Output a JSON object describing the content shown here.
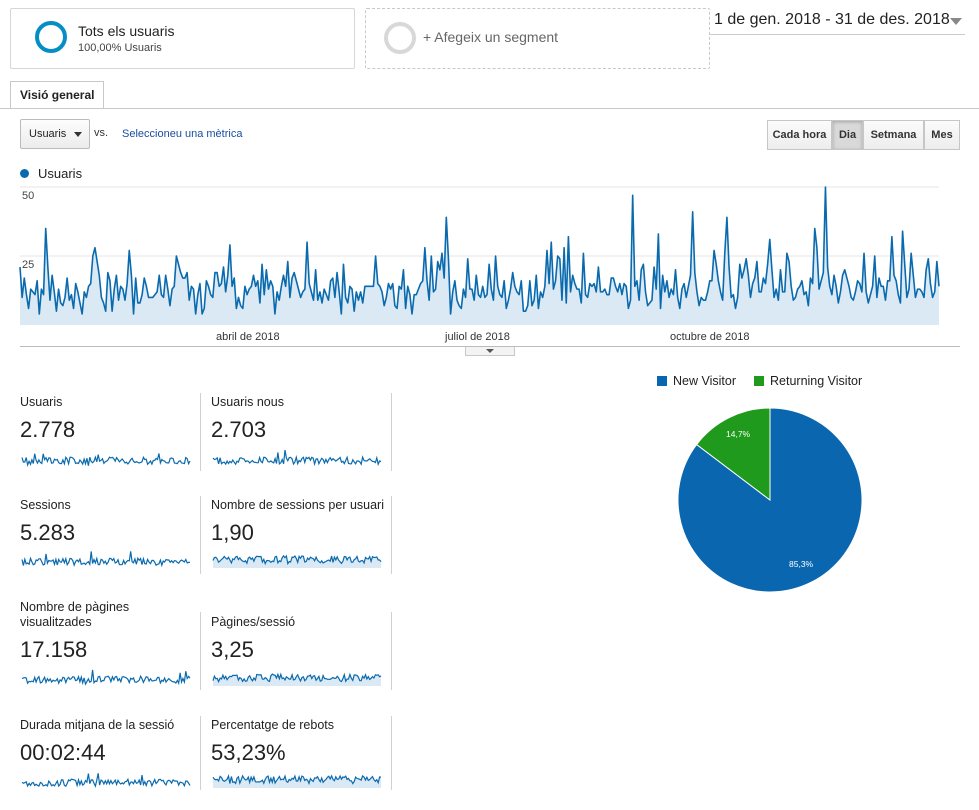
{
  "segments": {
    "active": {
      "title": "Tots els usuaris",
      "subtitle": "100,00% Usuaris"
    },
    "add_label": "+ Afegeix un segment"
  },
  "date_range": "1 de gen. 2018 - 31 de des. 2018",
  "tab": "Visió general",
  "controls": {
    "metric": "Usuaris",
    "vs": "vs.",
    "select_metric": "Seleccioneu una mètrica",
    "granularity": [
      "Cada hora",
      "Dia",
      "Setmana",
      "Mes"
    ],
    "selected_granularity": "Dia"
  },
  "colors": {
    "accent": "#058dc7",
    "line": "#0a6aae",
    "fill": "#dbe9f5",
    "new": "#0a66ae",
    "returning": "#1f9a1c"
  },
  "chart_data": [
    {
      "type": "area",
      "series": [
        {
          "name": "Usuaris",
          "values": [
            21,
            10,
            17,
            11,
            6,
            13,
            12,
            11,
            16,
            4,
            13,
            11,
            35,
            21,
            9,
            18,
            12,
            5,
            13,
            8,
            7,
            10,
            17,
            9,
            11,
            6,
            15,
            12,
            8,
            4,
            12,
            10,
            14,
            15,
            25,
            28,
            23,
            18,
            10,
            8,
            5,
            19,
            16,
            5,
            13,
            18,
            9,
            14,
            13,
            9,
            15,
            27,
            18,
            4,
            17,
            8,
            8,
            11,
            17,
            14,
            10,
            10,
            10,
            11,
            12,
            18,
            11,
            10,
            18,
            13,
            7,
            13,
            14,
            25,
            22,
            19,
            17,
            17,
            19,
            9,
            14,
            13,
            4,
            11,
            15,
            4,
            6,
            16,
            14,
            11,
            10,
            19,
            19,
            14,
            15,
            21,
            12,
            18,
            29,
            14,
            17,
            6,
            10,
            7,
            6,
            14,
            11,
            13,
            14,
            18,
            14,
            16,
            8,
            22,
            11,
            20,
            13,
            16,
            14,
            4,
            12,
            9,
            14,
            18,
            14,
            23,
            10,
            17,
            19,
            16,
            13,
            10,
            12,
            13,
            30,
            15,
            12,
            9,
            20,
            9,
            12,
            8,
            13,
            11,
            9,
            16,
            17,
            10,
            19,
            12,
            4,
            22,
            10,
            8,
            14,
            13,
            5,
            12,
            9,
            12,
            8,
            14,
            14,
            14,
            14,
            14,
            25,
            15,
            14,
            12,
            7,
            10,
            15,
            13,
            15,
            7,
            6,
            14,
            13,
            20,
            6,
            14,
            11,
            4,
            11,
            11,
            13,
            15,
            16,
            28,
            16,
            9,
            25,
            12,
            13,
            23,
            20,
            26,
            17,
            39,
            24,
            4,
            12,
            16,
            9,
            7,
            6,
            13,
            10,
            24,
            13,
            13,
            9,
            18,
            11,
            10,
            14,
            10,
            11,
            22,
            13,
            9,
            25,
            14,
            11,
            10,
            16,
            6,
            9,
            13,
            19,
            14,
            12,
            11,
            16,
            5,
            5,
            7,
            16,
            7,
            9,
            18,
            6,
            12,
            10,
            14,
            27,
            15,
            30,
            13,
            16,
            25,
            24,
            9,
            28,
            8,
            32,
            12,
            18,
            15,
            13,
            13,
            8,
            26,
            11,
            10,
            15,
            14,
            15,
            12,
            21,
            12,
            12,
            13,
            11,
            11,
            17,
            17,
            14,
            12,
            15,
            11,
            15,
            14,
            6,
            9,
            47,
            14,
            16,
            9,
            20,
            22,
            12,
            7,
            8,
            9,
            21,
            13,
            33,
            6,
            18,
            12,
            16,
            10,
            13,
            11,
            20,
            10,
            6,
            13,
            15,
            10,
            14,
            18,
            41,
            19,
            12,
            7,
            10,
            9,
            9,
            12,
            16,
            16,
            27,
            22,
            16,
            12,
            9,
            26,
            39,
            21,
            10,
            11,
            6,
            10,
            22,
            17,
            20,
            24,
            18,
            10,
            15,
            17,
            23,
            12,
            12,
            17,
            15,
            22,
            31,
            20,
            10,
            13,
            9,
            20,
            12,
            12,
            26,
            23,
            14,
            9,
            10,
            13,
            14,
            16,
            11,
            12,
            7,
            17,
            15,
            35,
            28,
            13,
            16,
            19,
            50,
            21,
            14,
            11,
            18,
            14,
            8,
            12,
            18,
            20,
            17,
            14,
            10,
            9,
            12,
            16,
            15,
            12,
            26,
            12,
            8,
            11,
            14,
            25,
            10,
            17,
            14,
            14,
            9,
            16,
            16,
            32,
            18,
            16,
            11,
            8,
            34,
            22,
            10,
            13,
            26,
            18,
            10,
            13,
            13,
            12,
            10,
            20,
            24,
            15,
            10,
            12,
            23,
            14
          ]
        }
      ],
      "x_ticks": [
        "abril de 2018",
        "juliol de 2018",
        "octubre de 2018"
      ],
      "y_ticks": [
        "25",
        "50"
      ],
      "ylim": [
        0,
        50
      ],
      "xlim": [
        "2018-01-01",
        "2018-12-31"
      ],
      "grid": true
    },
    {
      "type": "pie",
      "labels": [
        "New Visitor",
        "Returning Visitor"
      ],
      "values": [
        85.3,
        14.7
      ],
      "value_labels": [
        "85,3%",
        "14,7%"
      ],
      "legend": "top"
    }
  ],
  "scorecards": [
    {
      "label": "Usuaris",
      "value": "2.778"
    },
    {
      "label": "Usuaris nous",
      "value": "2.703"
    },
    {
      "label": "Sessions",
      "value": "5.283"
    },
    {
      "label": "Nombre de sessions per usuari",
      "value": "1,90"
    },
    {
      "label": "Nombre de pàgines visualitzades",
      "value": "17.158"
    },
    {
      "label": "Pàgines/sessió",
      "value": "3,25"
    },
    {
      "label": "Durada mitjana de la sessió",
      "value": "00:02:44"
    },
    {
      "label": "Percentatge de rebots",
      "value": "53,23%"
    }
  ]
}
